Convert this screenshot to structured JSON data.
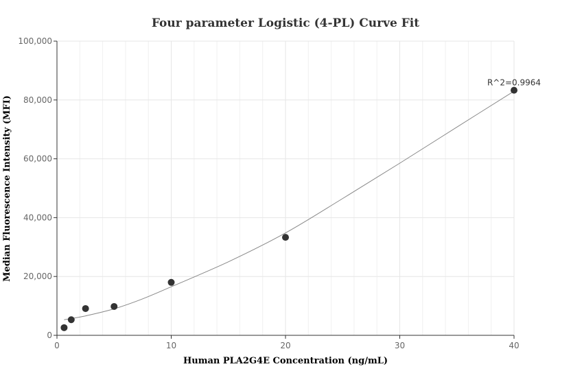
{
  "chart_data": {
    "type": "scatter",
    "title": "Four parameter Logistic (4-PL) Curve Fit",
    "xlabel": "Human PLA2G4E Concentration (ng/mL)",
    "ylabel": "Median Fluorescence Intensity (MFI)",
    "xlim": [
      0,
      40
    ],
    "ylim": [
      0,
      100000
    ],
    "x_ticks": [
      "0",
      "10",
      "20",
      "30",
      "40"
    ],
    "y_ticks": [
      "0",
      "20,000",
      "40,000",
      "60,000",
      "80,000",
      "100,000"
    ],
    "grid": true,
    "series": [
      {
        "points": [
          {
            "x": 0.625,
            "y": 2600
          },
          {
            "x": 1.25,
            "y": 5300
          },
          {
            "x": 2.5,
            "y": 9100
          },
          {
            "x": 5,
            "y": 9800
          },
          {
            "x": 10,
            "y": 18000
          },
          {
            "x": 20,
            "y": 33300
          },
          {
            "x": 40,
            "y": 83300
          }
        ]
      }
    ],
    "fit_curve": {
      "x": [
        0.625,
        2.5,
        5,
        7.5,
        10,
        15,
        20,
        25,
        30,
        35,
        40
      ],
      "y": [
        5300,
        6600,
        9000,
        12400,
        16500,
        25000,
        34800,
        46500,
        58500,
        70800,
        83000
      ]
    },
    "annotation": "R^2=0.9964",
    "colors": {
      "points": "#333333",
      "curve": "#888888"
    }
  }
}
